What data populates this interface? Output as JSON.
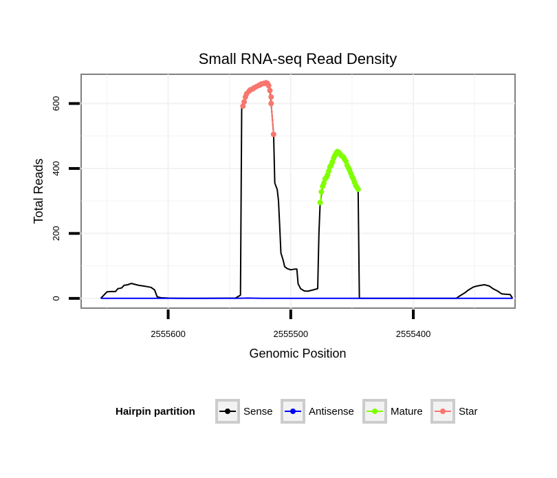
{
  "chart_data": {
    "type": "line",
    "title": "Small RNA-seq Read Density",
    "xlabel": "Genomic Position",
    "ylabel": "Total Reads",
    "xlim": [
      2555671,
      2555317
    ],
    "ylim": [
      -30,
      690
    ],
    "x_reversed": true,
    "x_ticks": [
      2555600,
      2555500,
      2555400
    ],
    "x_tick_labels": [
      "2555600",
      "2555500",
      "2555400"
    ],
    "y_ticks": [
      0,
      200,
      400,
      600
    ],
    "y_tick_labels": [
      "0",
      "200",
      "400",
      "600"
    ],
    "grid": true,
    "legend": {
      "title": "Hairpin partition",
      "position": "bottom",
      "entries": [
        {
          "label": "Sense",
          "color": "#000000"
        },
        {
          "label": "Antisense",
          "color": "#0000ff"
        },
        {
          "label": "Mature",
          "color": "#7fff00"
        },
        {
          "label": "Star",
          "color": "#f8766d"
        }
      ]
    },
    "series": [
      {
        "name": "Sense",
        "color": "#000000",
        "points": [
          [
            2555655,
            0
          ],
          [
            2555652,
            12
          ],
          [
            2555650,
            20
          ],
          [
            2555647,
            21
          ],
          [
            2555643,
            21
          ],
          [
            2555641,
            30
          ],
          [
            2555638,
            32
          ],
          [
            2555636,
            40
          ],
          [
            2555633,
            42
          ],
          [
            2555630,
            46
          ],
          [
            2555627,
            43
          ],
          [
            2555624,
            40
          ],
          [
            2555620,
            38
          ],
          [
            2555617,
            36
          ],
          [
            2555614,
            34
          ],
          [
            2555611,
            26
          ],
          [
            2555609,
            5
          ],
          [
            2555606,
            2
          ],
          [
            2555600,
            1
          ],
          [
            2555590,
            0
          ],
          [
            2555570,
            0
          ],
          [
            2555545,
            1
          ],
          [
            2555541,
            10
          ],
          [
            2555540,
            590
          ],
          [
            2555538,
            610
          ],
          [
            2555535,
            630
          ],
          [
            2555530,
            648
          ],
          [
            2555525,
            658
          ],
          [
            2555520,
            665
          ],
          [
            2555518,
            660
          ],
          [
            2555517,
            640
          ],
          [
            2555516,
            600
          ],
          [
            2555514,
            505
          ],
          [
            2555513,
            355
          ],
          [
            2555511,
            335
          ],
          [
            2555510,
            300
          ],
          [
            2555509,
            220
          ],
          [
            2555508,
            140
          ],
          [
            2555506,
            115
          ],
          [
            2555505,
            98
          ],
          [
            2555503,
            92
          ],
          [
            2555500,
            88
          ],
          [
            2555497,
            90
          ],
          [
            2555495,
            90
          ],
          [
            2555494,
            45
          ],
          [
            2555492,
            30
          ],
          [
            2555489,
            23
          ],
          [
            2555486,
            22
          ],
          [
            2555484,
            24
          ],
          [
            2555482,
            26
          ],
          [
            2555480,
            28
          ],
          [
            2555478,
            30
          ],
          [
            2555477,
            200
          ],
          [
            2555476,
            295
          ],
          [
            2555474,
            340
          ],
          [
            2555472,
            365
          ],
          [
            2555470,
            390
          ],
          [
            2555468,
            410
          ],
          [
            2555466,
            430
          ],
          [
            2555464,
            450
          ],
          [
            2555462,
            452
          ],
          [
            2555460,
            445
          ],
          [
            2555458,
            435
          ],
          [
            2555456,
            425
          ],
          [
            2555454,
            405
          ],
          [
            2555452,
            390
          ],
          [
            2555450,
            370
          ],
          [
            2555448,
            350
          ],
          [
            2555446,
            340
          ],
          [
            2555445,
            335
          ],
          [
            2555444,
            0
          ],
          [
            2555420,
            0
          ],
          [
            2555380,
            0
          ],
          [
            2555365,
            0
          ],
          [
            2555362,
            8
          ],
          [
            2555358,
            17
          ],
          [
            2555355,
            26
          ],
          [
            2555351,
            35
          ],
          [
            2555348,
            38
          ],
          [
            2555345,
            40
          ],
          [
            2555342,
            42
          ],
          [
            2555338,
            38
          ],
          [
            2555335,
            30
          ],
          [
            2555331,
            22
          ],
          [
            2555328,
            14
          ],
          [
            2555325,
            13
          ],
          [
            2555321,
            12
          ],
          [
            2555319,
            0
          ]
        ]
      },
      {
        "name": "Antisense",
        "color": "#0000ff",
        "points": [
          [
            2555655,
            0
          ],
          [
            2555545,
            0
          ],
          [
            2555535,
            1
          ],
          [
            2555520,
            0
          ],
          [
            2555319,
            0
          ]
        ]
      },
      {
        "name": "Mature",
        "color": "#7fff00",
        "points": [
          [
            2555476,
            295
          ],
          [
            2555475,
            328
          ],
          [
            2555474,
            345
          ],
          [
            2555473,
            355
          ],
          [
            2555472,
            368
          ],
          [
            2555471,
            372
          ],
          [
            2555470,
            380
          ],
          [
            2555469,
            392
          ],
          [
            2555468,
            405
          ],
          [
            2555467,
            410
          ],
          [
            2555466,
            420
          ],
          [
            2555465,
            432
          ],
          [
            2555464,
            440
          ],
          [
            2555463,
            447
          ],
          [
            2555462,
            452
          ],
          [
            2555461,
            450
          ],
          [
            2555460,
            446
          ],
          [
            2555459,
            440
          ],
          [
            2555458,
            438
          ],
          [
            2555457,
            435
          ],
          [
            2555456,
            428
          ],
          [
            2555455,
            422
          ],
          [
            2555454,
            410
          ],
          [
            2555453,
            402
          ],
          [
            2555452,
            395
          ],
          [
            2555451,
            385
          ],
          [
            2555450,
            375
          ],
          [
            2555449,
            368
          ],
          [
            2555448,
            358
          ],
          [
            2555447,
            348
          ],
          [
            2555446,
            342
          ],
          [
            2555445,
            336
          ]
        ]
      },
      {
        "name": "Star",
        "color": "#f8766d",
        "points": [
          [
            2555539,
            592
          ],
          [
            2555538,
            605
          ],
          [
            2555537,
            620
          ],
          [
            2555536,
            630
          ],
          [
            2555534,
            638
          ],
          [
            2555533,
            642
          ],
          [
            2555531,
            645
          ],
          [
            2555530,
            648
          ],
          [
            2555528,
            652
          ],
          [
            2555526,
            656
          ],
          [
            2555525,
            657
          ],
          [
            2555524,
            660
          ],
          [
            2555522,
            662
          ],
          [
            2555521,
            662
          ],
          [
            2555520,
            664
          ],
          [
            2555519,
            662
          ],
          [
            2555518,
            655
          ],
          [
            2555517,
            640
          ],
          [
            2555516,
            620
          ],
          [
            2555516,
            600
          ],
          [
            2555514,
            505
          ]
        ]
      }
    ]
  }
}
